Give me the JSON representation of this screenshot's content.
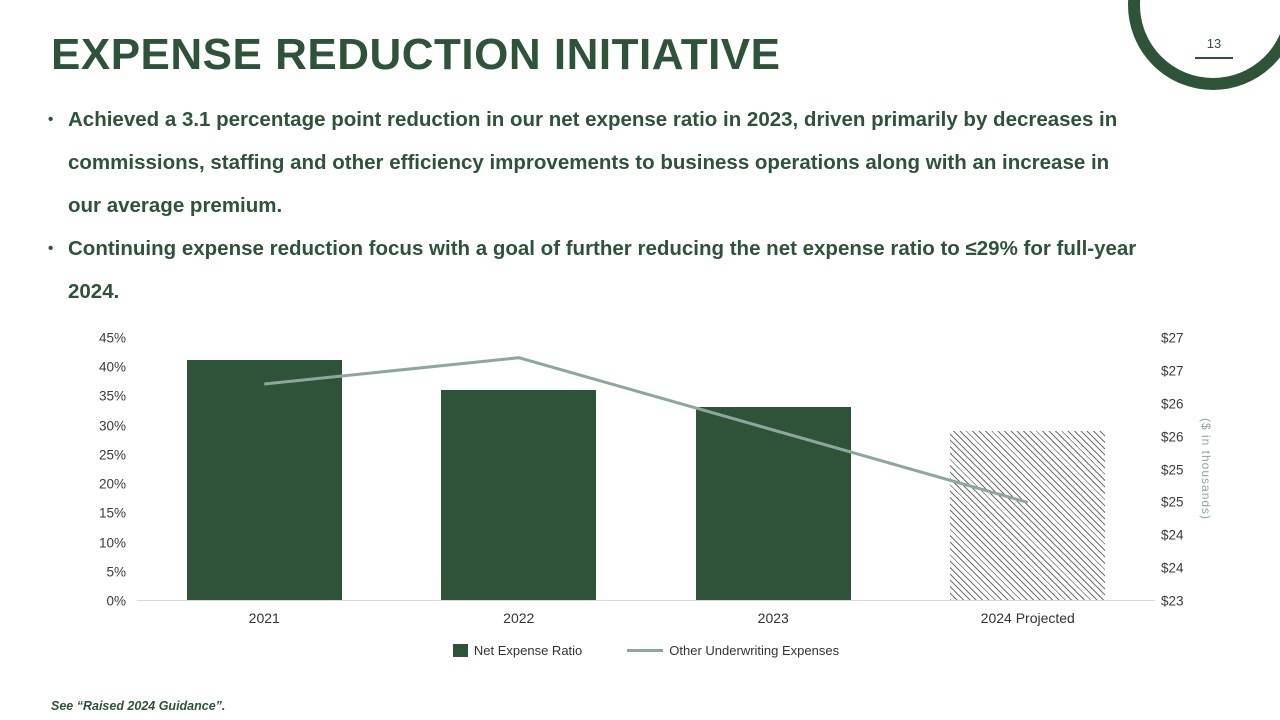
{
  "slide": {
    "title": "EXPENSE REDUCTION INITIATIVE",
    "page_number": "13",
    "bullet_marker": "•",
    "bullets": [
      "Achieved a 3.1 percentage point reduction in our net expense ratio in 2023, driven primarily by decreases in commissions, staffing and other efficiency improvements to business operations along with an increase in our average premium.",
      "Continuing expense reduction focus with a goal of further reducing the net expense ratio to ≤29% for full-year 2024."
    ],
    "footnote": "See “Raised 2024 Guidance”."
  },
  "colors": {
    "primary_green": "#2e5339",
    "sage": "#8ea79e",
    "axis_text": "#3b3b3b",
    "baseline": "#d9d9d9"
  },
  "chart_data": {
    "type": "combo",
    "categories": [
      "2021",
      "2022",
      "2023",
      "2024 Projected"
    ],
    "series": [
      {
        "name": "Net Expense Ratio",
        "chart": "bar",
        "axis": "left",
        "unit": "%",
        "values": [
          41,
          36,
          33,
          29
        ],
        "hatched": [
          false,
          false,
          false,
          true
        ],
        "color": "#2e5339"
      },
      {
        "name": "Other Underwriting Expenses",
        "chart": "line",
        "axis": "right",
        "unit": "$ in thousands",
        "values": [
          26.3,
          26.7,
          25.6,
          24.5
        ],
        "color": "#8ea79e"
      }
    ],
    "left_axis": {
      "min": 0,
      "max": 45,
      "step": 5,
      "tick_labels": [
        "45%",
        "40%",
        "35%",
        "30%",
        "25%",
        "20%",
        "15%",
        "10%",
        "5%",
        "0%"
      ]
    },
    "right_axis": {
      "min": 23,
      "max": 27,
      "step": 0.5,
      "tick_labels": [
        "$27",
        "$27",
        "$26",
        "$26",
        "$25",
        "$25",
        "$24",
        "$24",
        "$23"
      ],
      "title": "($ in thousands)"
    },
    "legend": [
      "Net Expense Ratio",
      "Other Underwriting Expenses"
    ],
    "grid": false,
    "legend_position": "bottom-center"
  }
}
